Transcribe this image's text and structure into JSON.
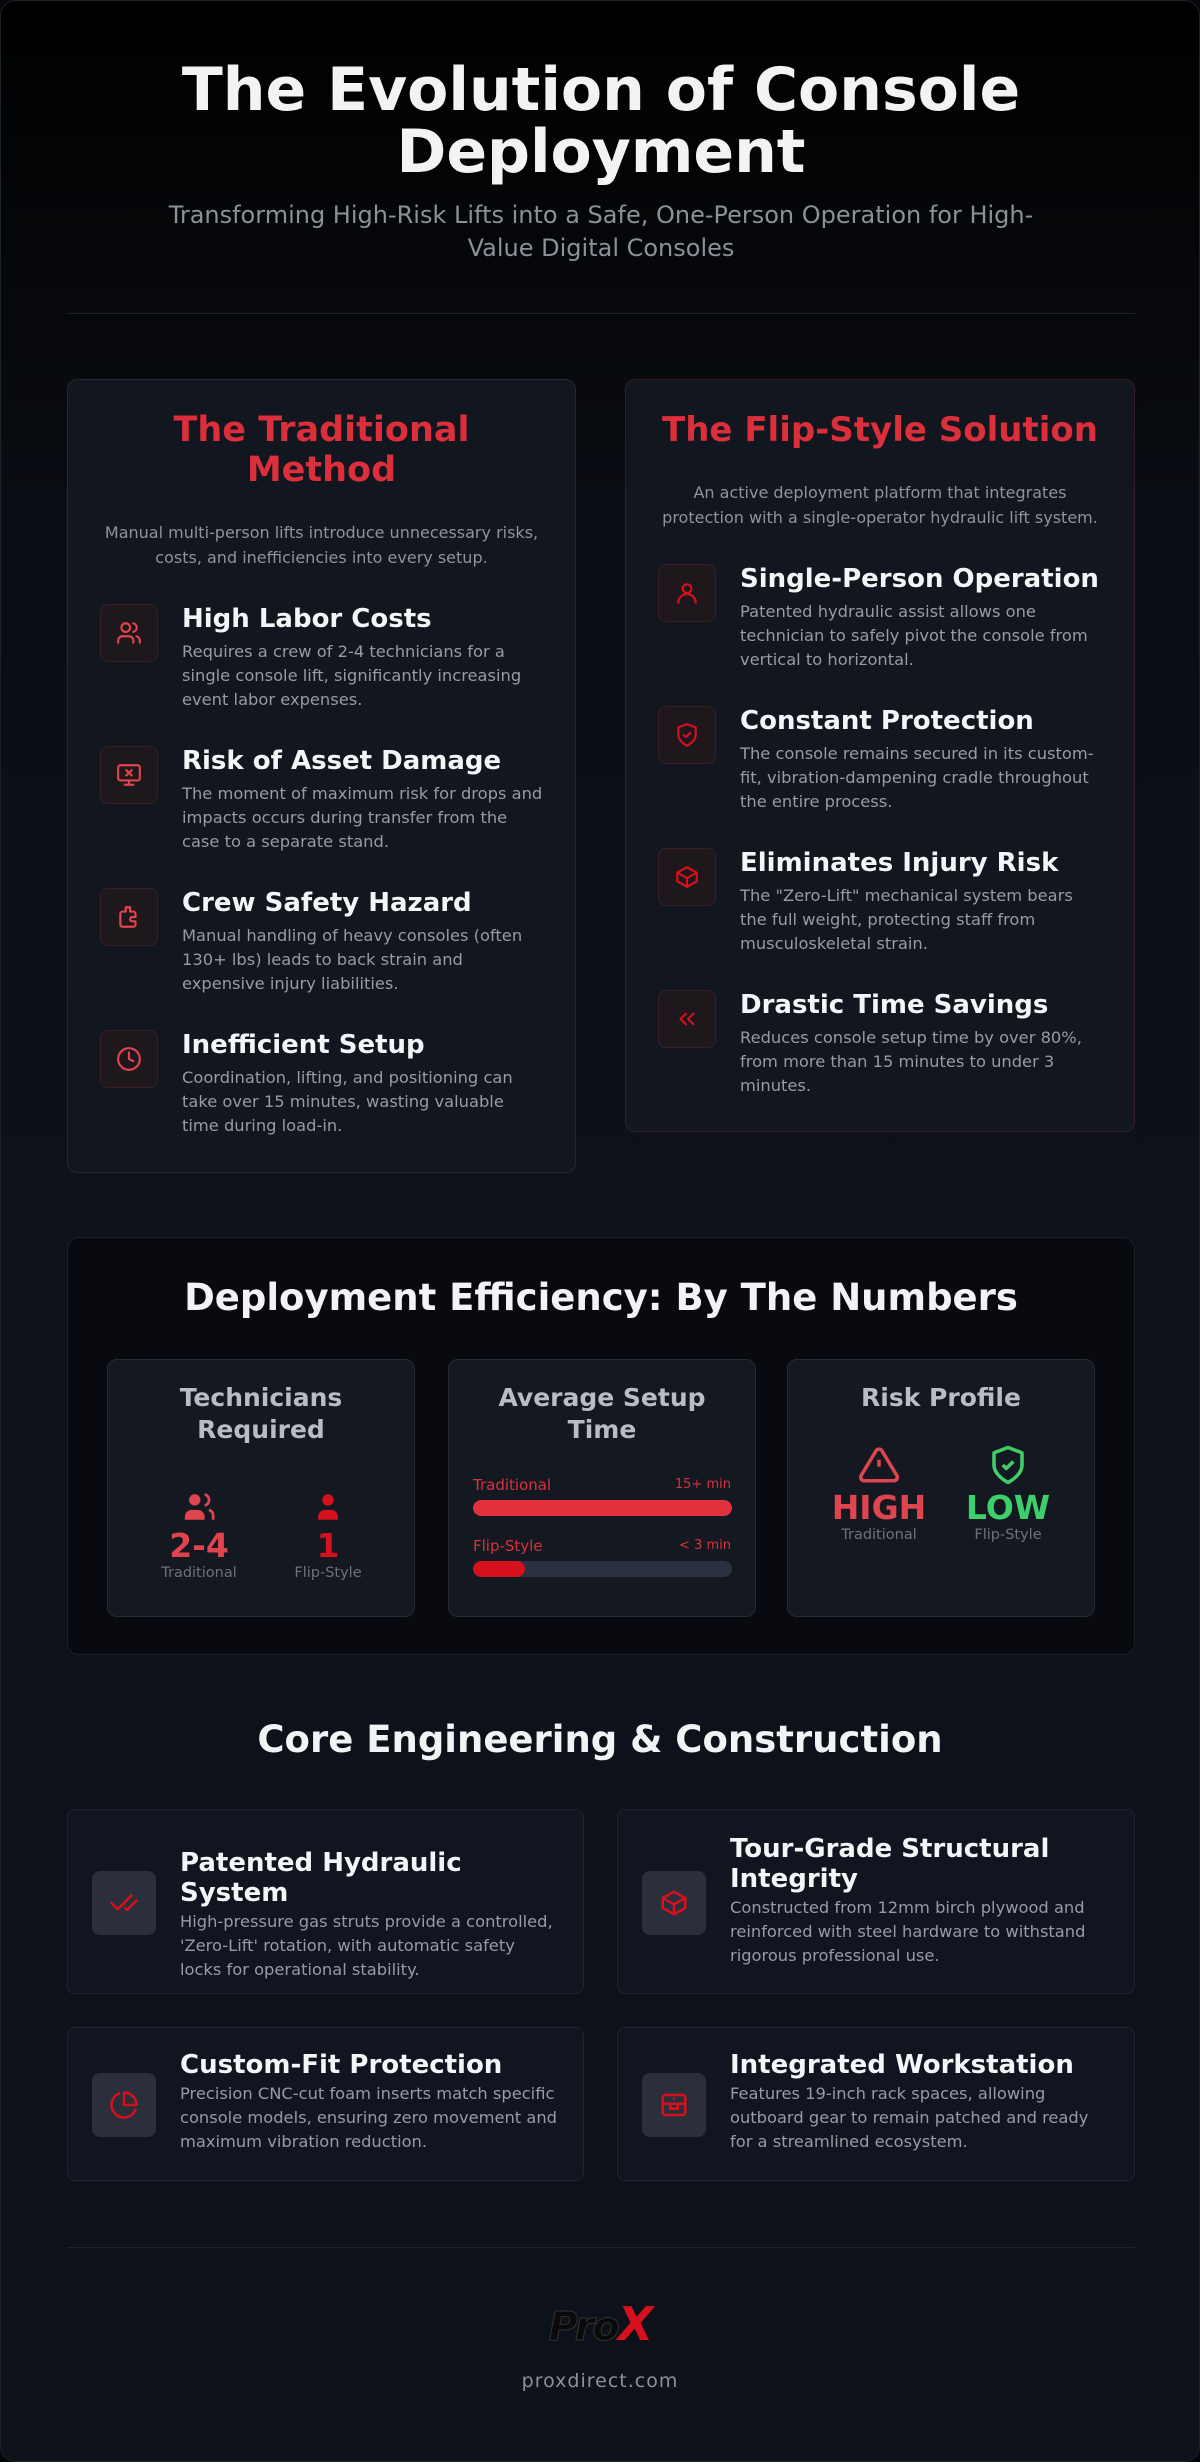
{
  "header": {
    "title": "The Evolution of Console Deployment",
    "subtitle": "Transforming High-Risk Lifts into a Safe, One-Person Operation for High-Value Digital Consoles"
  },
  "traditional": {
    "title": "The Traditional Method",
    "intro": "Manual multi-person lifts introduce unnecessary risks, costs, and inefficiencies into every setup.",
    "items": [
      {
        "title": "High Labor Costs",
        "text": "Requires a crew of 2-4 technicians for a single console lift, significantly increasing event labor expenses."
      },
      {
        "title": "Risk of Asset Damage",
        "text": "The moment of maximum risk for drops and impacts occurs during transfer from the case to a separate stand."
      },
      {
        "title": "Crew Safety Hazard",
        "text": "Manual handling of heavy consoles (often 130+ lbs) leads to back strain and expensive injury liabilities."
      },
      {
        "title": "Inefficient Setup",
        "text": "Coordination, lifting, and positioning can take over 15 minutes, wasting valuable time during load-in."
      }
    ]
  },
  "flip": {
    "title": "The Flip-Style Solution",
    "intro": "An active deployment platform that integrates protection with a single-operator hydraulic lift system.",
    "items": [
      {
        "title": "Single-Person Operation",
        "text": "Patented hydraulic assist allows one technician to safely pivot the console from vertical to horizontal."
      },
      {
        "title": "Constant Protection",
        "text": "The console remains secured in its custom-fit, vibration-dampening cradle throughout the entire process."
      },
      {
        "title": "Eliminates Injury Risk",
        "text": "The \"Zero-Lift\" mechanical system bears the full weight, protecting staff from musculoskeletal strain."
      },
      {
        "title": "Drastic Time Savings",
        "text": "Reduces console setup time by over 80%, from more than 15 minutes to under 3 minutes."
      }
    ]
  },
  "numbers": {
    "title": "Deployment Efficiency: By The Numbers",
    "technicians": {
      "title": "Technicians Required",
      "traditional": "2-4",
      "traditional_label": "Traditional",
      "flip": "1",
      "flip_label": "Flip-Style"
    },
    "setup": {
      "title": "Average Setup Time",
      "categories": [
        "Traditional",
        "Flip-Style"
      ],
      "values": [
        15,
        3
      ],
      "value_labels": [
        "15+ min",
        "< 3 min"
      ]
    },
    "risk": {
      "title": "Risk Profile",
      "traditional": "HIGH",
      "traditional_label": "Traditional",
      "flip": "LOW",
      "flip_label": "Flip-Style"
    }
  },
  "core": {
    "title": "Core Engineering & Construction",
    "items": [
      {
        "title": "Patented Hydraulic System",
        "text": "High-pressure gas struts provide a controlled, 'Zero-Lift' rotation, with automatic safety locks for operational stability."
      },
      {
        "title": "Tour-Grade Structural Integrity",
        "text": "Constructed from 12mm birch plywood and reinforced with steel hardware to withstand rigorous professional use."
      },
      {
        "title": "Custom-Fit Protection",
        "text": "Precision CNC-cut foam inserts match specific console models, ensuring zero movement and maximum vibration reduction."
      },
      {
        "title": "Integrated Workstation",
        "text": "Features 19-inch rack spaces, allowing outboard gear to remain patched and ready for a streamlined ecosystem."
      }
    ]
  },
  "footer": {
    "logo": {
      "text": "Pro",
      "mark": "X"
    },
    "url": "proxdirect.com"
  }
}
